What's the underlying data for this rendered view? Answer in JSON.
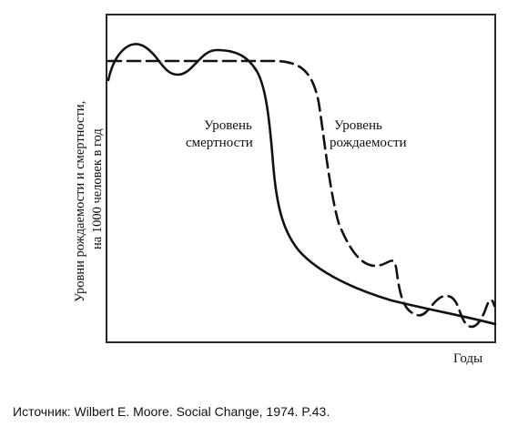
{
  "diagram": {
    "axis": {
      "y_label_line1": "Уровни рождаемости и смертности,",
      "y_label_line2": "на 1000 человек в год",
      "x_label": "Годы"
    },
    "labels": {
      "death_rate": [
        "Уровень",
        "смертности"
      ],
      "birth_rate": [
        "Уровень",
        "рождаемости"
      ]
    },
    "curves": {
      "death_rate_style": "solid",
      "birth_rate_style": "dashed"
    }
  },
  "source": "Источник: Wilbert E. Moore. Social Change, 1974. P.43."
}
